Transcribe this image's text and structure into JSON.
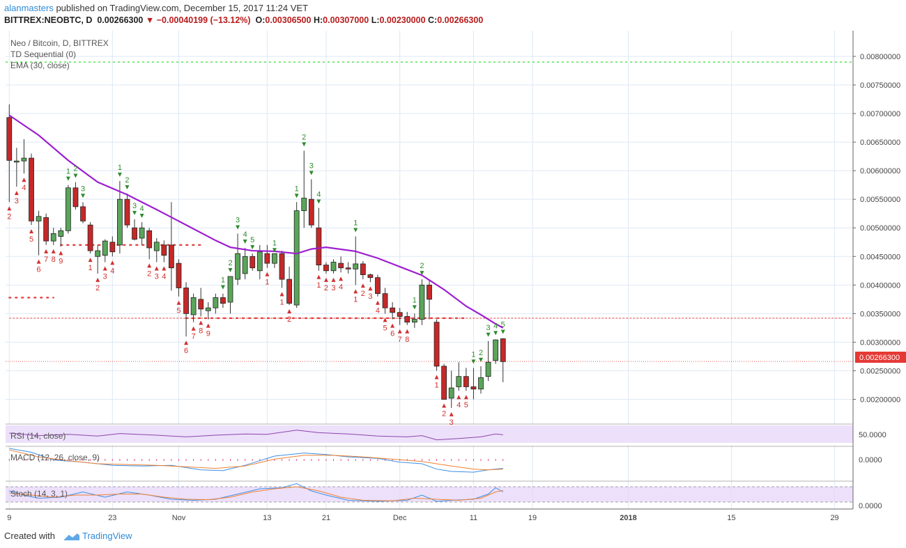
{
  "header": {
    "user": "alanmasters",
    "published_text": "published on TradingView.com, December 15, 2017 11:24 VET",
    "symbol": "BITTREX:NEOBTC, D",
    "last": "0.00266300",
    "change": "−0.00040199 (−13.12%)",
    "ohlc": {
      "o_label": "O:",
      "o": "0.00306500",
      "h_label": "H:",
      "h": "0.00307000",
      "l_label": "L:",
      "l": "0.00230000",
      "c_label": "C:",
      "c": "0.00266300"
    }
  },
  "legend": {
    "main": "Neo / Bitcoin, D, BITTREX",
    "td": "TD Sequential (0)",
    "ema": "EMA (30, close)",
    "rsi": "RSI (14, close)",
    "macd": "MACD (12, 26, close, 9)",
    "stoch": "Stoch (14, 3, 1)"
  },
  "colors": {
    "up_fill": "#5aa55a",
    "down_fill": "#c62828",
    "ema": "#9c1fd0",
    "td_buy": "#d32f2f",
    "td_sell": "#2e8b2e",
    "green_level": "#33dd33",
    "red_level": "#e04040",
    "rsi_band": "#e6d6f8",
    "rsi_line": "#8e44ad",
    "macd_line": "#3a8ee6",
    "signal_line": "#f08030",
    "stoch_k": "#3a8ee6",
    "stoch_d": "#f08030"
  },
  "price_label": "0.00266300",
  "panel_labels": {
    "rsi": "50.0000",
    "macd": "0.0000",
    "stoch": "0.0000"
  },
  "footer": {
    "created_with": "Created with",
    "brand": "TradingView"
  },
  "chart_data": {
    "type": "candlestick",
    "title": "Neo / Bitcoin, D, BITTREX",
    "y_ticks": [
      "0.00200000",
      "0.00250000",
      "0.00300000",
      "0.00350000",
      "0.00400000",
      "0.00450000",
      "0.00500000",
      "0.00550000",
      "0.00600000",
      "0.00650000",
      "0.00700000",
      "0.00750000",
      "0.00800000"
    ],
    "ylim": [
      0.00158,
      0.00845
    ],
    "x_ticks": [
      {
        "label": "9",
        "index": 0
      },
      {
        "label": "23",
        "index": 14
      },
      {
        "label": "Nov",
        "index": 23
      },
      {
        "label": "13",
        "index": 35
      },
      {
        "label": "21",
        "index": 43
      },
      {
        "label": "Dec",
        "index": 53
      },
      {
        "label": "11",
        "index": 63
      },
      {
        "label": "19",
        "index": 71
      },
      {
        "label": "2018",
        "index": 84,
        "bold": true
      },
      {
        "label": "15",
        "index": 98
      },
      {
        "label": "29",
        "index": 112
      }
    ],
    "x_index_range": [
      -0.5,
      114.5
    ],
    "candles": [
      [
        0.00693,
        0.00716,
        0.00545,
        0.00618
      ],
      [
        0.00615,
        0.0064,
        0.00572,
        0.00617
      ],
      [
        0.00617,
        0.00655,
        0.00595,
        0.00622
      ],
      [
        0.00622,
        0.0063,
        0.00505,
        0.00512
      ],
      [
        0.00512,
        0.0053,
        0.00452,
        0.0052
      ],
      [
        0.00518,
        0.00525,
        0.0047,
        0.00477
      ],
      [
        0.00477,
        0.005,
        0.0047,
        0.0049
      ],
      [
        0.00485,
        0.005,
        0.00467,
        0.00495
      ],
      [
        0.00495,
        0.00575,
        0.0049,
        0.0057
      ],
      [
        0.0057,
        0.0058,
        0.00532,
        0.00537
      ],
      [
        0.00537,
        0.00545,
        0.00508,
        0.00512
      ],
      [
        0.00505,
        0.0051,
        0.00455,
        0.0046
      ],
      [
        0.0045,
        0.0047,
        0.0042,
        0.0046
      ],
      [
        0.00452,
        0.0048,
        0.0044,
        0.00477
      ],
      [
        0.00475,
        0.00485,
        0.0045,
        0.00458
      ],
      [
        0.0047,
        0.00582,
        0.00455,
        0.0055
      ],
      [
        0.0055,
        0.0056,
        0.005,
        0.00505
      ],
      [
        0.005,
        0.00515,
        0.00478,
        0.0048
      ],
      [
        0.00482,
        0.0051,
        0.0047,
        0.005
      ],
      [
        0.00495,
        0.005,
        0.00445,
        0.00465
      ],
      [
        0.0046,
        0.00482,
        0.0044,
        0.00475
      ],
      [
        0.0047,
        0.00478,
        0.0044,
        0.00452
      ],
      [
        0.0047,
        0.00545,
        0.0039,
        0.0043
      ],
      [
        0.00438,
        0.00445,
        0.0038,
        0.00395
      ],
      [
        0.00395,
        0.00405,
        0.0031,
        0.0035
      ],
      [
        0.00348,
        0.00385,
        0.00335,
        0.00378
      ],
      [
        0.00375,
        0.00395,
        0.00345,
        0.00358
      ],
      [
        0.00355,
        0.0037,
        0.0034,
        0.0036
      ],
      [
        0.0036,
        0.00385,
        0.0035,
        0.00378
      ],
      [
        0.00378,
        0.00385,
        0.0036,
        0.00368
      ],
      [
        0.0037,
        0.00415,
        0.0035,
        0.00415
      ],
      [
        0.0041,
        0.0049,
        0.004,
        0.00455
      ],
      [
        0.0042,
        0.00465,
        0.0041,
        0.0045
      ],
      [
        0.0045,
        0.00455,
        0.00425,
        0.0043
      ],
      [
        0.00425,
        0.0047,
        0.0041,
        0.00458
      ],
      [
        0.00455,
        0.0047,
        0.0043,
        0.00438
      ],
      [
        0.00438,
        0.0045,
        0.0043,
        0.00455
      ],
      [
        0.00455,
        0.0046,
        0.00395,
        0.0041
      ],
      [
        0.0041,
        0.00432,
        0.00365,
        0.00368
      ],
      [
        0.00365,
        0.00545,
        0.0036,
        0.0053
      ],
      [
        0.0053,
        0.00635,
        0.005,
        0.00552
      ],
      [
        0.0055,
        0.00585,
        0.005,
        0.00505
      ],
      [
        0.005,
        0.00535,
        0.00425,
        0.00435
      ],
      [
        0.00435,
        0.0044,
        0.0042,
        0.00425
      ],
      [
        0.00425,
        0.00445,
        0.0042,
        0.0044
      ],
      [
        0.00438,
        0.0045,
        0.00422,
        0.0043
      ],
      [
        0.0043,
        0.0044,
        0.0042,
        0.00428
      ],
      [
        0.00428,
        0.00485,
        0.004,
        0.00437
      ],
      [
        0.00437,
        0.00442,
        0.0041,
        0.00418
      ],
      [
        0.00418,
        0.0042,
        0.00405,
        0.00413
      ],
      [
        0.00413,
        0.00418,
        0.0038,
        0.00385
      ],
      [
        0.00385,
        0.00395,
        0.0035,
        0.0036
      ],
      [
        0.0036,
        0.0037,
        0.0034,
        0.00352
      ],
      [
        0.00352,
        0.0036,
        0.0033,
        0.00345
      ],
      [
        0.00345,
        0.00353,
        0.0033,
        0.00335
      ],
      [
        0.00335,
        0.0035,
        0.00325,
        0.0034
      ],
      [
        0.0034,
        0.0041,
        0.0033,
        0.004
      ],
      [
        0.004,
        0.0041,
        0.0034,
        0.00375
      ],
      [
        0.00335,
        0.0034,
        0.0025,
        0.00258
      ],
      [
        0.00258,
        0.00262,
        0.002,
        0.002
      ],
      [
        0.00202,
        0.0025,
        0.00185,
        0.0022
      ],
      [
        0.00222,
        0.00265,
        0.00215,
        0.0024
      ],
      [
        0.0024,
        0.00255,
        0.00215,
        0.00222
      ],
      [
        0.00222,
        0.00255,
        0.002,
        0.00218
      ],
      [
        0.00218,
        0.00258,
        0.0021,
        0.00238
      ],
      [
        0.0024,
        0.00302,
        0.00232,
        0.00265
      ],
      [
        0.00268,
        0.00305,
        0.00262,
        0.00304
      ],
      [
        0.00306,
        0.00307,
        0.0023,
        0.00266
      ]
    ],
    "ema": [
      [
        0,
        0.00697
      ],
      [
        4,
        0.00662
      ],
      [
        8,
        0.00618
      ],
      [
        12,
        0.0058
      ],
      [
        16,
        0.00558
      ],
      [
        20,
        0.00532
      ],
      [
        24,
        0.00505
      ],
      [
        28,
        0.00478
      ],
      [
        30,
        0.00466
      ],
      [
        33,
        0.0046
      ],
      [
        36,
        0.00459
      ],
      [
        39,
        0.00455
      ],
      [
        41,
        0.00463
      ],
      [
        43,
        0.00466
      ],
      [
        47,
        0.00459
      ],
      [
        50,
        0.00447
      ],
      [
        53,
        0.00432
      ],
      [
        56,
        0.00417
      ],
      [
        59,
        0.00392
      ],
      [
        62,
        0.00363
      ],
      [
        64,
        0.00348
      ],
      [
        65,
        0.0034
      ],
      [
        66,
        0.00332
      ],
      [
        67,
        0.00325
      ]
    ],
    "green_level": 0.0079,
    "red_levels": [
      {
        "y": 0.00342,
        "from": 0,
        "to": 110,
        "style": "dashed"
      },
      {
        "y": 0.0047,
        "from": 7,
        "to": 26,
        "style": "dots"
      },
      {
        "y": 0.00378,
        "from": 0,
        "to": 6,
        "style": "dots"
      },
      {
        "y": 0.00342,
        "from": 24,
        "to": 62,
        "style": "dots"
      }
    ],
    "last_price": 0.002663,
    "td_buy": [
      [
        0,
        "2"
      ],
      [
        1,
        "3"
      ],
      [
        2,
        "4"
      ],
      [
        3,
        "5"
      ],
      [
        4,
        "6"
      ],
      [
        5,
        "7"
      ],
      [
        6,
        "8"
      ],
      [
        7,
        "9"
      ],
      [
        11,
        "1"
      ],
      [
        12,
        "2"
      ],
      [
        13,
        "3"
      ],
      [
        14,
        "4"
      ],
      [
        19,
        "2"
      ],
      [
        20,
        "3"
      ],
      [
        21,
        "4"
      ],
      [
        23,
        "5"
      ],
      [
        24,
        "6"
      ],
      [
        25,
        "7"
      ],
      [
        26,
        "8"
      ],
      [
        27,
        "9"
      ],
      [
        35,
        "1"
      ],
      [
        37,
        "1"
      ],
      [
        38,
        "2"
      ],
      [
        42,
        "1"
      ],
      [
        43,
        "2"
      ],
      [
        44,
        "3"
      ],
      [
        45,
        "4"
      ],
      [
        47,
        "1"
      ],
      [
        48,
        "2"
      ],
      [
        49,
        "3"
      ],
      [
        50,
        "4"
      ],
      [
        51,
        "5"
      ],
      [
        52,
        "6"
      ],
      [
        53,
        "7"
      ],
      [
        54,
        "8"
      ],
      [
        58,
        "1"
      ],
      [
        59,
        "2"
      ],
      [
        60,
        "3"
      ],
      [
        61,
        "4"
      ],
      [
        62,
        "5"
      ]
    ],
    "td_sell": [
      [
        8,
        "1"
      ],
      [
        9,
        "2"
      ],
      [
        10,
        "3"
      ],
      [
        15,
        "1"
      ],
      [
        16,
        "2"
      ],
      [
        17,
        "3"
      ],
      [
        18,
        "4"
      ],
      [
        29,
        "1"
      ],
      [
        30,
        "2"
      ],
      [
        31,
        "3"
      ],
      [
        32,
        "4"
      ],
      [
        33,
        "5"
      ],
      [
        36,
        "1"
      ],
      [
        39,
        "1"
      ],
      [
        40,
        "2"
      ],
      [
        41,
        "3"
      ],
      [
        42,
        "4"
      ],
      [
        47,
        "1"
      ],
      [
        55,
        "1"
      ],
      [
        56,
        "2"
      ],
      [
        63,
        "1"
      ],
      [
        64,
        "2"
      ],
      [
        65,
        "3"
      ],
      [
        66,
        "4"
      ],
      [
        67,
        "5"
      ]
    ],
    "rsi": [
      [
        0,
        50
      ],
      [
        4,
        44
      ],
      [
        8,
        47
      ],
      [
        12,
        43
      ],
      [
        15,
        49
      ],
      [
        20,
        45
      ],
      [
        24,
        41
      ],
      [
        28,
        45
      ],
      [
        32,
        48
      ],
      [
        35,
        47
      ],
      [
        39,
        57
      ],
      [
        42,
        51
      ],
      [
        46,
        48
      ],
      [
        50,
        43
      ],
      [
        54,
        41
      ],
      [
        56,
        44
      ],
      [
        58,
        34
      ],
      [
        61,
        37
      ],
      [
        64,
        41
      ],
      [
        66,
        48
      ],
      [
        67,
        46
      ]
    ],
    "macd": [
      [
        0,
        2.0
      ],
      [
        3,
        1.5
      ],
      [
        6,
        0.5
      ],
      [
        10,
        0.2
      ],
      [
        14,
        -0.2
      ],
      [
        18,
        -0.3
      ],
      [
        22,
        -0.2
      ],
      [
        26,
        -0.8
      ],
      [
        29,
        -0.9
      ],
      [
        32,
        -0.2
      ],
      [
        36,
        1.0
      ],
      [
        40,
        1.4
      ],
      [
        43,
        1.2
      ],
      [
        46,
        0.9
      ],
      [
        50,
        0.7
      ],
      [
        53,
        0.2
      ],
      [
        56,
        0.0
      ],
      [
        58,
        -0.7
      ],
      [
        60,
        -1.0
      ],
      [
        63,
        -1.1
      ],
      [
        65,
        -0.8
      ],
      [
        67,
        -0.6
      ]
    ],
    "signal": [
      [
        0,
        1.8
      ],
      [
        4,
        0.9
      ],
      [
        8,
        0.4
      ],
      [
        12,
        0.0
      ],
      [
        16,
        -0.1
      ],
      [
        20,
        -0.2
      ],
      [
        24,
        -0.4
      ],
      [
        28,
        -0.6
      ],
      [
        32,
        -0.3
      ],
      [
        36,
        0.6
      ],
      [
        40,
        1.1
      ],
      [
        44,
        1.1
      ],
      [
        48,
        0.9
      ],
      [
        52,
        0.6
      ],
      [
        56,
        0.3
      ],
      [
        60,
        -0.3
      ],
      [
        63,
        -0.7
      ],
      [
        65,
        -0.8
      ],
      [
        67,
        -0.7
      ]
    ],
    "stoch_k": [
      [
        0,
        60
      ],
      [
        2,
        40
      ],
      [
        4,
        25
      ],
      [
        7,
        30
      ],
      [
        10,
        55
      ],
      [
        13,
        30
      ],
      [
        16,
        55
      ],
      [
        19,
        40
      ],
      [
        22,
        20
      ],
      [
        25,
        15
      ],
      [
        28,
        20
      ],
      [
        31,
        45
      ],
      [
        34,
        70
      ],
      [
        37,
        75
      ],
      [
        39,
        95
      ],
      [
        41,
        60
      ],
      [
        43,
        40
      ],
      [
        46,
        15
      ],
      [
        50,
        10
      ],
      [
        54,
        15
      ],
      [
        56,
        40
      ],
      [
        58,
        10
      ],
      [
        60,
        15
      ],
      [
        63,
        20
      ],
      [
        65,
        45
      ],
      [
        66,
        75
      ],
      [
        67,
        55
      ]
    ],
    "stoch_d": [
      [
        0,
        50
      ],
      [
        3,
        40
      ],
      [
        6,
        30
      ],
      [
        9,
        40
      ],
      [
        12,
        40
      ],
      [
        15,
        45
      ],
      [
        18,
        45
      ],
      [
        21,
        30
      ],
      [
        24,
        20
      ],
      [
        27,
        18
      ],
      [
        30,
        30
      ],
      [
        33,
        55
      ],
      [
        36,
        70
      ],
      [
        39,
        80
      ],
      [
        42,
        60
      ],
      [
        45,
        30
      ],
      [
        48,
        15
      ],
      [
        52,
        12
      ],
      [
        55,
        25
      ],
      [
        58,
        20
      ],
      [
        61,
        15
      ],
      [
        64,
        25
      ],
      [
        66,
        55
      ],
      [
        67,
        62
      ]
    ]
  }
}
